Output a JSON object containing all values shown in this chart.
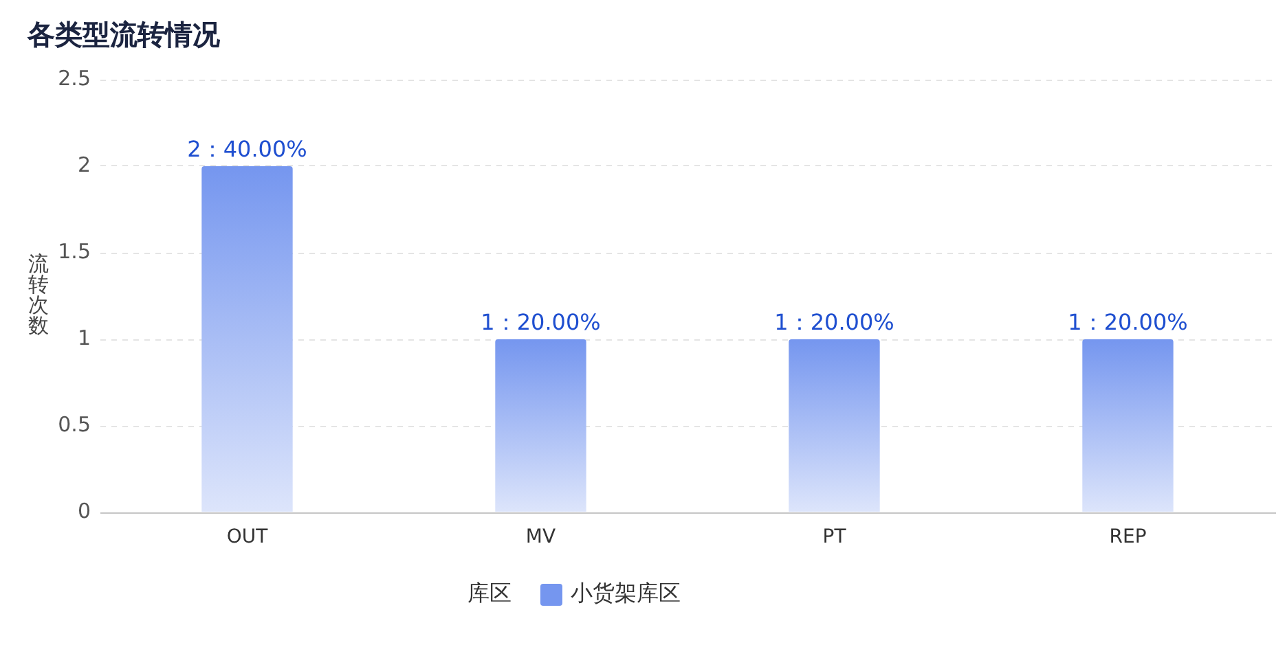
{
  "chart_data": {
    "type": "bar",
    "title": "各类型流转情况",
    "ylabel": "流转次数",
    "legend_title": "库区",
    "categories": [
      "OUT",
      "MV",
      "PT",
      "REP"
    ],
    "series": [
      {
        "name": "小货架库区",
        "color": "#7596ef",
        "values": [
          2,
          1,
          1,
          1
        ],
        "value_labels": [
          "2：40.00%",
          "1：20.00%",
          "1：20.00%",
          "1：20.00%"
        ]
      }
    ],
    "ylim": [
      0,
      2.5
    ],
    "yticks": [
      0,
      0.5,
      1,
      1.5,
      2,
      2.5
    ],
    "grid": "y",
    "legend": "bottom"
  }
}
